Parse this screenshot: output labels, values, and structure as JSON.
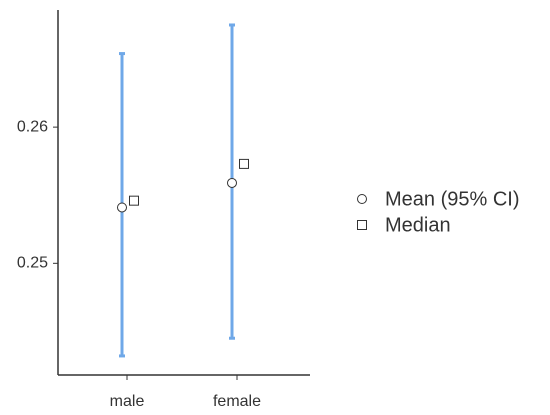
{
  "chart_data": {
    "type": "pointrange",
    "categories": [
      "male",
      "female"
    ],
    "series": [
      {
        "name": "Mean (95% CI)",
        "color": "#6fa8e8",
        "values": [
          0.2541,
          0.2559
        ],
        "ci_lower": [
          0.2432,
          0.2445
        ],
        "ci_upper": [
          0.2654,
          0.2675
        ]
      },
      {
        "name": "Median",
        "values": [
          0.2546,
          0.2573
        ]
      }
    ],
    "ylim": [
      0.2418,
      0.2686
    ],
    "yticks": [
      0.25,
      0.26
    ]
  }
}
